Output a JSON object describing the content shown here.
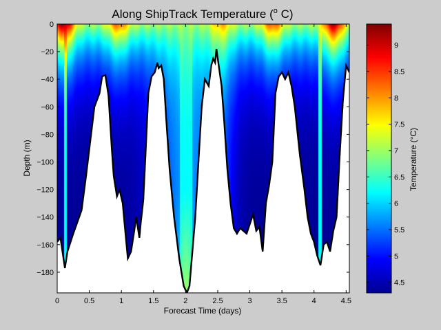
{
  "chart_data": {
    "type": "heatmap",
    "title_main": "Along ShipTrack Temperature (",
    "title_sup": "o",
    "title_end": " C)",
    "xlabel": "Forecast Time (days)",
    "ylabel": "Depth (m)",
    "colorbar_label": "Temperature (°C)",
    "xlim": [
      0,
      4.55
    ],
    "ylim": [
      -195,
      0
    ],
    "clim": [
      4.3,
      9.4
    ],
    "xticks": [
      {
        "v": 0,
        "t": "0"
      },
      {
        "v": 0.5,
        "t": "0.5"
      },
      {
        "v": 1,
        "t": "1"
      },
      {
        "v": 1.5,
        "t": "1.5"
      },
      {
        "v": 2,
        "t": "2"
      },
      {
        "v": 2.5,
        "t": "2.5"
      },
      {
        "v": 3,
        "t": "3"
      },
      {
        "v": 3.5,
        "t": "3.5"
      },
      {
        "v": 4,
        "t": "4"
      },
      {
        "v": 4.5,
        "t": "4.5"
      }
    ],
    "yticks": [
      {
        "v": 0,
        "t": "0"
      },
      {
        "v": -20,
        "t": "−20"
      },
      {
        "v": -40,
        "t": "−40"
      },
      {
        "v": -60,
        "t": "−60"
      },
      {
        "v": -80,
        "t": "−80"
      },
      {
        "v": -100,
        "t": "−100"
      },
      {
        "v": -120,
        "t": "−120"
      },
      {
        "v": -140,
        "t": "−140"
      },
      {
        "v": -160,
        "t": "−160"
      },
      {
        "v": -180,
        "t": "−180"
      }
    ],
    "cticks": [
      {
        "v": 4.5,
        "t": "4.5"
      },
      {
        "v": 5,
        "t": "5"
      },
      {
        "v": 5.5,
        "t": "5.5"
      },
      {
        "v": 6,
        "t": "6"
      },
      {
        "v": 6.5,
        "t": "6.5"
      },
      {
        "v": 7,
        "t": "7"
      },
      {
        "v": 7.5,
        "t": "7.5"
      },
      {
        "v": 8,
        "t": "8"
      },
      {
        "v": 8.5,
        "t": "8.5"
      },
      {
        "v": 9,
        "t": "9"
      }
    ],
    "colormap": "jet",
    "bottom_depth": {
      "x": [
        0,
        0.05,
        0.12,
        0.16,
        0.25,
        0.38,
        0.45,
        0.58,
        0.66,
        0.7,
        0.75,
        0.8,
        0.85,
        0.88,
        0.93,
        0.97,
        1.02,
        1.05,
        1.1,
        1.15,
        1.2,
        1.23,
        1.28,
        1.3,
        1.34,
        1.38,
        1.42,
        1.47,
        1.52,
        1.56,
        1.58,
        1.62,
        1.66,
        1.7,
        1.75,
        1.82,
        1.9,
        1.97,
        2.02,
        2.06,
        2.1,
        2.15,
        2.2,
        2.25,
        2.3,
        2.36,
        2.4,
        2.43,
        2.46,
        2.48,
        2.5,
        2.53,
        2.56,
        2.6,
        2.65,
        2.7,
        2.75,
        2.8,
        2.85,
        2.9,
        2.95,
        3.0,
        3.05,
        3.1,
        3.15,
        3.2,
        3.25,
        3.3,
        3.35,
        3.4,
        3.45,
        3.5,
        3.55,
        3.6,
        3.65,
        3.7,
        3.78,
        3.85,
        3.9,
        3.95,
        4.0,
        4.05,
        4.1,
        4.15,
        4.2,
        4.25,
        4.3,
        4.35,
        4.4,
        4.45,
        4.5,
        4.55
      ],
      "depth": [
        -158,
        -155,
        -177,
        -165,
        -152,
        -135,
        -110,
        -60,
        -50,
        -38,
        -37,
        -52,
        -90,
        -110,
        -125,
        -120,
        -130,
        -145,
        -170,
        -165,
        -150,
        -140,
        -155,
        -145,
        -128,
        -90,
        -50,
        -38,
        -35,
        -28,
        -32,
        -30,
        -40,
        -70,
        -105,
        -140,
        -170,
        -190,
        -195,
        -190,
        -168,
        -140,
        -100,
        -60,
        -40,
        -45,
        -30,
        -25,
        -28,
        -18,
        -25,
        -35,
        -45,
        -70,
        -105,
        -130,
        -148,
        -152,
        -148,
        -150,
        -152,
        -145,
        -138,
        -150,
        -147,
        -165,
        -130,
        -117,
        -100,
        -50,
        -38,
        -35,
        -40,
        -35,
        -45,
        -60,
        -95,
        -120,
        -140,
        -152,
        -158,
        -168,
        -175,
        -160,
        -158,
        -165,
        -150,
        -140,
        -95,
        -55,
        -30,
        -35
      ]
    },
    "temperature_field_params": {
      "surface_max_at_x": [
        0.1,
        0.95,
        2.55,
        3.35,
        4.3
      ],
      "surface_max_values": [
        9.3,
        8.3,
        7.9,
        8.4,
        9.2
      ],
      "background_surface": 7.0,
      "deep_cold_value": 4.4,
      "mid_channel_value": 6.2,
      "bottom_warm_value": 7.0,
      "bottom_warm_at_x": 2.0
    }
  }
}
